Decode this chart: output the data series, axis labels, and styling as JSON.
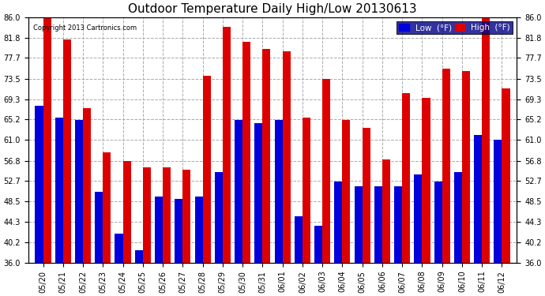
{
  "title": "Outdoor Temperature Daily High/Low 20130613",
  "copyright": "Copyright 2013 Cartronics.com",
  "legend_low": "Low  (°F)",
  "legend_high": "High  (°F)",
  "ylim": [
    36.0,
    86.0
  ],
  "yticks": [
    36.0,
    40.2,
    44.3,
    48.5,
    52.7,
    56.8,
    61.0,
    65.2,
    69.3,
    73.5,
    77.7,
    81.8,
    86.0
  ],
  "categories": [
    "05/20",
    "05/21",
    "05/22",
    "05/23",
    "05/24",
    "05/25",
    "05/26",
    "05/27",
    "05/28",
    "05/29",
    "05/30",
    "05/31",
    "06/01",
    "06/02",
    "06/03",
    "06/04",
    "06/05",
    "06/06",
    "06/07",
    "06/08",
    "06/09",
    "06/10",
    "06/11",
    "06/12"
  ],
  "low_values": [
    68.0,
    65.5,
    65.0,
    50.5,
    42.0,
    38.5,
    49.5,
    49.0,
    49.5,
    54.5,
    65.0,
    64.5,
    65.0,
    45.5,
    43.5,
    52.5,
    51.5,
    51.5,
    51.5,
    54.0,
    52.5,
    54.5,
    62.0,
    61.0
  ],
  "high_values": [
    86.0,
    81.5,
    67.5,
    58.5,
    56.8,
    55.5,
    55.5,
    55.0,
    74.0,
    84.0,
    81.0,
    79.5,
    79.0,
    65.5,
    73.5,
    65.0,
    63.5,
    57.0,
    70.5,
    69.5,
    75.5,
    75.0,
    86.0,
    71.5
  ],
  "bar_color_low": "#0000dd",
  "bar_color_high": "#dd0000",
  "background_color": "#ffffff",
  "grid_color": "#aaaaaa",
  "bar_width": 0.4,
  "title_fontsize": 11,
  "tick_fontsize": 7,
  "legend_fontsize": 7.5,
  "ybaseline": 36.0
}
